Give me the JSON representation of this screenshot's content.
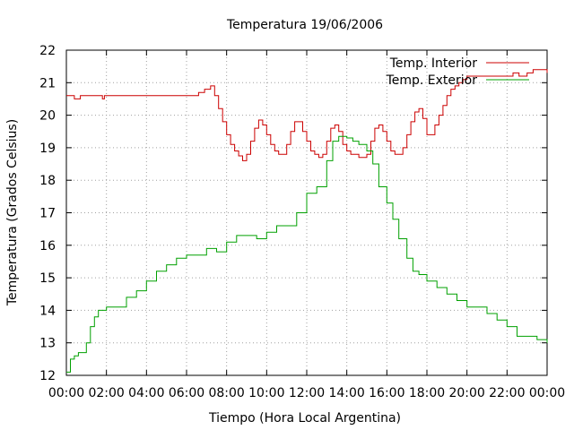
{
  "chart_data": {
    "type": "line",
    "title": "Temperatura 19/06/2006",
    "xlabel": "Tiempo (Hora Local Argentina)",
    "ylabel": "Temperatura (Grados Celsius)",
    "xlim": [
      0,
      24
    ],
    "ylim": [
      12,
      22
    ],
    "grid": true,
    "legend_position": "top-right",
    "x_ticks": [
      0,
      2,
      4,
      6,
      8,
      10,
      12,
      14,
      16,
      18,
      20,
      22,
      24
    ],
    "x_tick_labels": [
      "00:00",
      "02:00",
      "04:00",
      "06:00",
      "08:00",
      "10:00",
      "12:00",
      "14:00",
      "16:00",
      "18:00",
      "20:00",
      "22:00",
      "00:00"
    ],
    "y_ticks": [
      12,
      13,
      14,
      15,
      16,
      17,
      18,
      19,
      20,
      21,
      22
    ],
    "y_tick_labels": [
      "12",
      "13",
      "14",
      "15",
      "16",
      "17",
      "18",
      "19",
      "20",
      "21",
      "22"
    ],
    "series": [
      {
        "name": "Temp. Interior",
        "color": "#cc0000",
        "x": [
          0,
          0.3,
          0.4,
          0.7,
          1.0,
          1.5,
          1.8,
          1.9,
          2.2,
          3,
          4,
          5,
          6,
          6.3,
          6.6,
          6.9,
          7.2,
          7.4,
          7.6,
          7.8,
          8.0,
          8.2,
          8.4,
          8.6,
          8.8,
          9.0,
          9.2,
          9.4,
          9.6,
          9.8,
          10.0,
          10.2,
          10.4,
          10.6,
          10.8,
          11.0,
          11.2,
          11.4,
          11.6,
          11.8,
          12.0,
          12.2,
          12.4,
          12.6,
          12.8,
          13.0,
          13.2,
          13.4,
          13.6,
          13.8,
          14.0,
          14.2,
          14.4,
          14.6,
          14.8,
          15.0,
          15.2,
          15.4,
          15.6,
          15.8,
          16.0,
          16.2,
          16.4,
          16.6,
          16.8,
          17.0,
          17.2,
          17.4,
          17.6,
          17.8,
          18.0,
          18.2,
          18.4,
          18.6,
          18.8,
          19.0,
          19.2,
          19.4,
          19.6,
          19.8,
          20.0,
          20.5,
          21.0,
          21.5,
          22.0,
          22.3,
          22.6,
          23.0,
          23.3,
          23.6,
          24.0
        ],
        "values": [
          20.6,
          20.6,
          20.5,
          20.6,
          20.6,
          20.6,
          20.5,
          20.6,
          20.6,
          20.6,
          20.6,
          20.6,
          20.6,
          20.6,
          20.7,
          20.8,
          20.9,
          20.6,
          20.2,
          19.8,
          19.4,
          19.1,
          18.9,
          18.75,
          18.6,
          18.8,
          19.2,
          19.6,
          19.85,
          19.7,
          19.4,
          19.1,
          18.9,
          18.8,
          18.8,
          19.1,
          19.5,
          19.8,
          19.8,
          19.5,
          19.2,
          18.9,
          18.8,
          18.7,
          18.8,
          19.2,
          19.6,
          19.7,
          19.5,
          19.1,
          18.9,
          18.8,
          18.8,
          18.7,
          18.7,
          18.8,
          19.2,
          19.6,
          19.7,
          19.5,
          19.2,
          18.9,
          18.8,
          18.8,
          19.0,
          19.4,
          19.8,
          20.1,
          20.2,
          19.9,
          19.4,
          19.4,
          19.7,
          20.0,
          20.3,
          20.6,
          20.8,
          20.9,
          21.0,
          21.1,
          21.2,
          21.2,
          21.2,
          21.2,
          21.2,
          21.3,
          21.2,
          21.3,
          21.4,
          21.4,
          21.3
        ]
      },
      {
        "name": "Temp. Exterior",
        "color": "#00a000",
        "x": [
          0,
          0.2,
          0.4,
          0.6,
          0.8,
          1.0,
          1.2,
          1.4,
          1.6,
          1.8,
          2.0,
          2.5,
          3.0,
          3.5,
          4.0,
          4.5,
          5.0,
          5.5,
          6.0,
          6.5,
          7.0,
          7.5,
          8.0,
          8.5,
          9.0,
          9.5,
          10.0,
          10.5,
          11.0,
          11.5,
          12.0,
          12.5,
          13.0,
          13.3,
          13.6,
          14.0,
          14.3,
          14.6,
          15.0,
          15.3,
          15.6,
          16.0,
          16.3,
          16.6,
          17.0,
          17.3,
          17.6,
          18.0,
          18.5,
          19.0,
          19.5,
          20.0,
          20.5,
          21.0,
          21.5,
          22.0,
          22.5,
          23.0,
          23.5,
          24.0
        ],
        "values": [
          12.1,
          12.5,
          12.6,
          12.7,
          12.7,
          13.0,
          13.5,
          13.8,
          14.0,
          14.0,
          14.1,
          14.1,
          14.4,
          14.6,
          14.9,
          15.2,
          15.4,
          15.6,
          15.7,
          15.7,
          15.9,
          15.8,
          16.1,
          16.3,
          16.3,
          16.2,
          16.4,
          16.6,
          16.6,
          17.0,
          17.6,
          17.8,
          18.6,
          19.2,
          19.35,
          19.3,
          19.2,
          19.1,
          18.9,
          18.5,
          17.8,
          17.3,
          16.8,
          16.2,
          15.6,
          15.2,
          15.1,
          14.9,
          14.7,
          14.5,
          14.3,
          14.1,
          14.1,
          13.9,
          13.7,
          13.5,
          13.2,
          13.2,
          13.1,
          13.0
        ]
      }
    ]
  }
}
